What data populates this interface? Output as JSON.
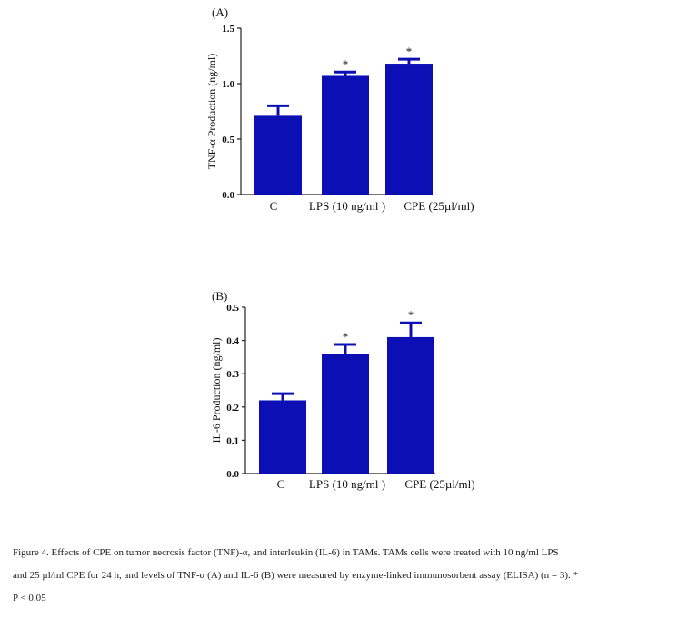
{
  "chart_data": [
    {
      "type": "bar",
      "panel_label": "(A)",
      "categories": [
        "C",
        "LPS (10 ng/ml )",
        "CPE (25µl/ml)"
      ],
      "values": [
        0.71,
        1.07,
        1.18
      ],
      "errors": [
        0.09,
        0.035,
        0.04
      ],
      "significance": [
        "",
        "*",
        "*"
      ],
      "ylabel": "TNF-α Production (ng/ml)",
      "xlabel": "",
      "ylim": [
        0,
        1.5
      ],
      "yticks": [
        "0.0",
        "0.5",
        "1.0",
        "1.5"
      ],
      "ytick_values": [
        0,
        0.5,
        1.0,
        1.5
      ],
      "bar_color": "#0c10b4",
      "grid": false
    },
    {
      "type": "bar",
      "panel_label": "(B)",
      "categories": [
        "C",
        "LPS (10 ng/ml )",
        "CPE (25µl/ml)"
      ],
      "values": [
        0.22,
        0.36,
        0.41
      ],
      "errors": [
        0.02,
        0.028,
        0.043
      ],
      "significance": [
        "",
        "*",
        "*"
      ],
      "ylabel": "IL-6 Production (ng/ml)",
      "xlabel": "",
      "ylim": [
        0,
        0.5
      ],
      "yticks": [
        "0.0",
        "0.1",
        "0.2",
        "0.3",
        "0.4",
        "0.5"
      ],
      "ytick_values": [
        0,
        0.1,
        0.2,
        0.3,
        0.4,
        0.5
      ],
      "bar_color": "#0c10b4",
      "grid": false
    }
  ],
  "caption": {
    "line1": "Figure 4. Effects of CPE on  tumor necrosis factor (TNF)-α, and interleukin (IL-6) in TAMs. TAMs cells  were treated with 10 ng/ml LPS",
    "line2": "and 25 µl/ml CPE for 24 h, and levels of TNF-α (A) and IL-6 (B) were measured by enzyme-linked immunosorbent assay (ELISA) (n = 3). *",
    "line3": "P < 0.05"
  }
}
